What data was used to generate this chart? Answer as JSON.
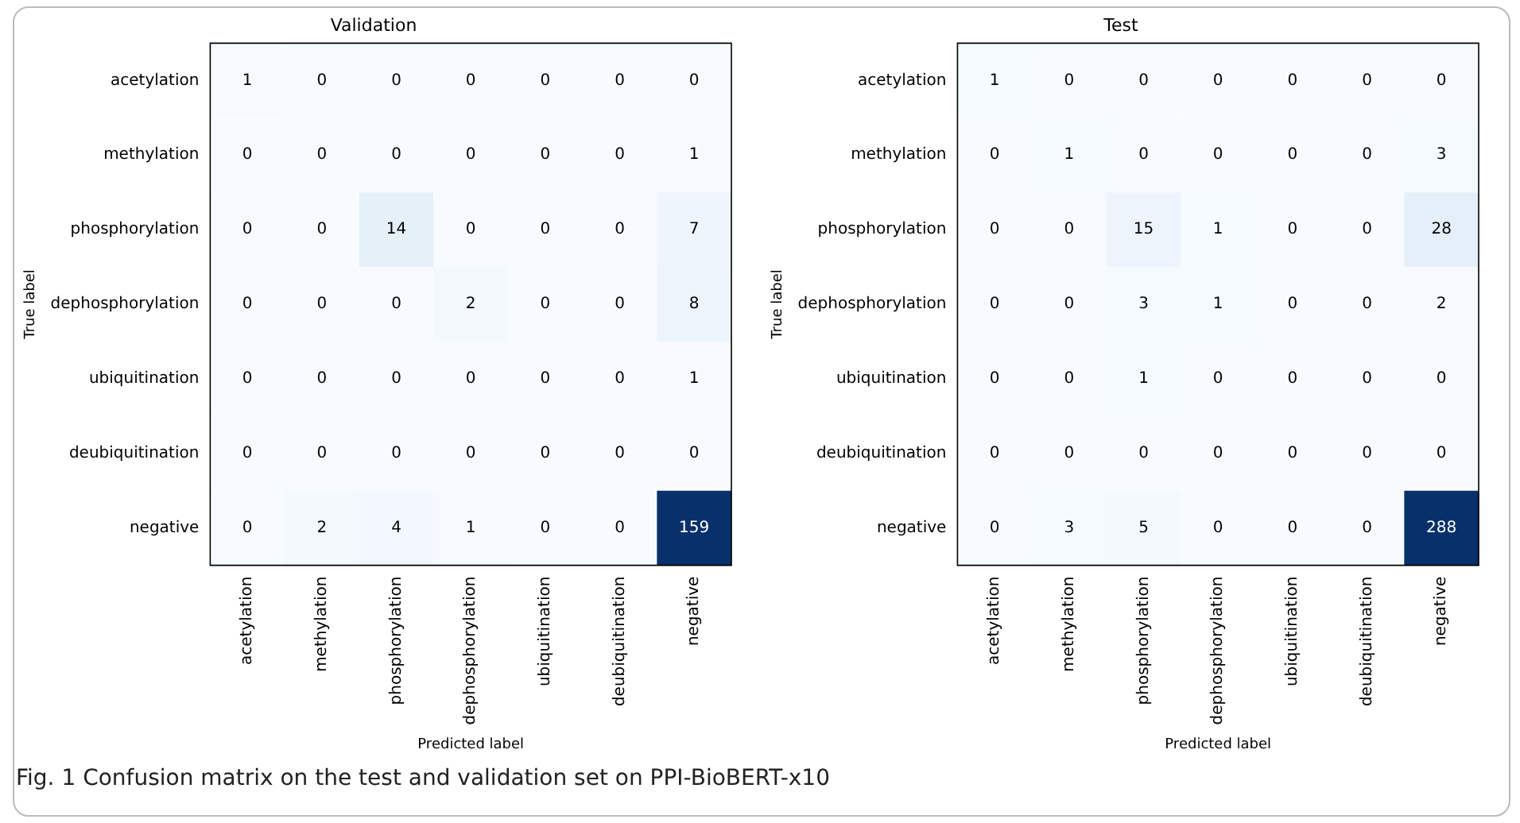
{
  "chart_data": [
    {
      "type": "heatmap",
      "title": "Validation",
      "xlabel": "Predicted label",
      "ylabel": "True label",
      "categories": [
        "acetylation",
        "methylation",
        "phosphorylation",
        "dephosphorylation",
        "ubiquitination",
        "deubiquitination",
        "negative"
      ],
      "y_categories": [
        "acetylation",
        "methylation",
        "phosphorylation",
        "dephosphorylation",
        "ubiquitination",
        "deubiquitination",
        "negative"
      ],
      "cells": [
        [
          1,
          0,
          0,
          0,
          0,
          0,
          0
        ],
        [
          0,
          0,
          0,
          0,
          0,
          0,
          1
        ],
        [
          0,
          0,
          14,
          0,
          0,
          0,
          7
        ],
        [
          0,
          0,
          0,
          2,
          0,
          0,
          8
        ],
        [
          0,
          0,
          0,
          0,
          0,
          0,
          1
        ],
        [
          0,
          0,
          0,
          0,
          0,
          0,
          0
        ],
        [
          0,
          2,
          4,
          1,
          0,
          0,
          159
        ]
      ],
      "data_labels": true,
      "annotations": [
        "Fig. 1 Confusion matrix on the test and validation set on PPI-BioBERT-x10"
      ]
    },
    {
      "type": "heatmap",
      "title": "Test",
      "data_labels": true,
      "xlabel": "Predicted label",
      "ylabel": "True label",
      "categories": [
        "acetylation",
        "methylation",
        "phosphorylation",
        "dephosphorylation",
        "ubiquitination",
        "deubiquitination",
        "negative"
      ],
      "y_categories": [
        "acetylation",
        "methylation",
        "phosphorylation",
        "dephosphorylation",
        "ubiquitination",
        "deubiquitination",
        "negative"
      ],
      "cells": [
        [
          1,
          0,
          0,
          0,
          0,
          0,
          0
        ],
        [
          0,
          1,
          0,
          0,
          0,
          0,
          3
        ],
        [
          0,
          0,
          15,
          1,
          0,
          0,
          28
        ],
        [
          0,
          0,
          3,
          1,
          0,
          0,
          2
        ],
        [
          0,
          0,
          1,
          0,
          0,
          0,
          0
        ],
        [
          0,
          0,
          0,
          0,
          0,
          0,
          0
        ],
        [
          0,
          3,
          5,
          0,
          0,
          0,
          288
        ]
      ]
    }
  ]
}
